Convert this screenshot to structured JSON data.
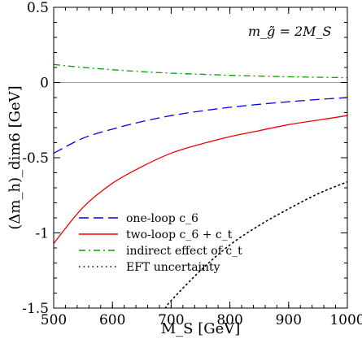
{
  "chart_data": {
    "type": "line",
    "xlabel": "M_S [GeV]",
    "ylabel": "(Δm_h)_dim6 [GeV]",
    "xlim": [
      500,
      1000
    ],
    "ylim": [
      -1.5,
      0.5
    ],
    "x_ticks": [
      "500",
      "600",
      "700",
      "800",
      "900",
      "1000"
    ],
    "y_ticks": [
      "0.5",
      "0",
      "-0.5",
      "-1",
      "-1.5"
    ],
    "annotation": "m_g̃ = 2M_S",
    "zero_line": true,
    "grid": false,
    "legend_position": "bottom-left",
    "x": [
      500,
      550,
      600,
      650,
      700,
      750,
      800,
      850,
      900,
      950,
      1000
    ],
    "series": [
      {
        "name": "one-loop c_6",
        "style": "dashed",
        "color": "#0000ee",
        "values": [
          -0.47,
          -0.37,
          -0.31,
          -0.26,
          -0.22,
          -0.19,
          -0.165,
          -0.145,
          -0.128,
          -0.113,
          -0.1
        ]
      },
      {
        "name": "two-loop c_6 + c_t",
        "style": "solid",
        "color": "#ee0000",
        "values": [
          -1.07,
          -0.83,
          -0.67,
          -0.56,
          -0.47,
          -0.41,
          -0.36,
          -0.32,
          -0.28,
          -0.25,
          -0.22
        ]
      },
      {
        "name": "indirect effect of c_t",
        "style": "dashdot",
        "color": "#00a000",
        "values": [
          0.12,
          0.1,
          0.085,
          0.072,
          0.062,
          0.055,
          0.048,
          0.043,
          0.038,
          0.035,
          0.032
        ]
      },
      {
        "name": "EFT uncertainty",
        "style": "dotted",
        "color": "#000000",
        "x": [
          690,
          700,
          750,
          800,
          850,
          900,
          950,
          1000
        ],
        "values": [
          -1.5,
          -1.45,
          -1.25,
          -1.08,
          -0.95,
          -0.84,
          -0.74,
          -0.66
        ]
      }
    ]
  }
}
